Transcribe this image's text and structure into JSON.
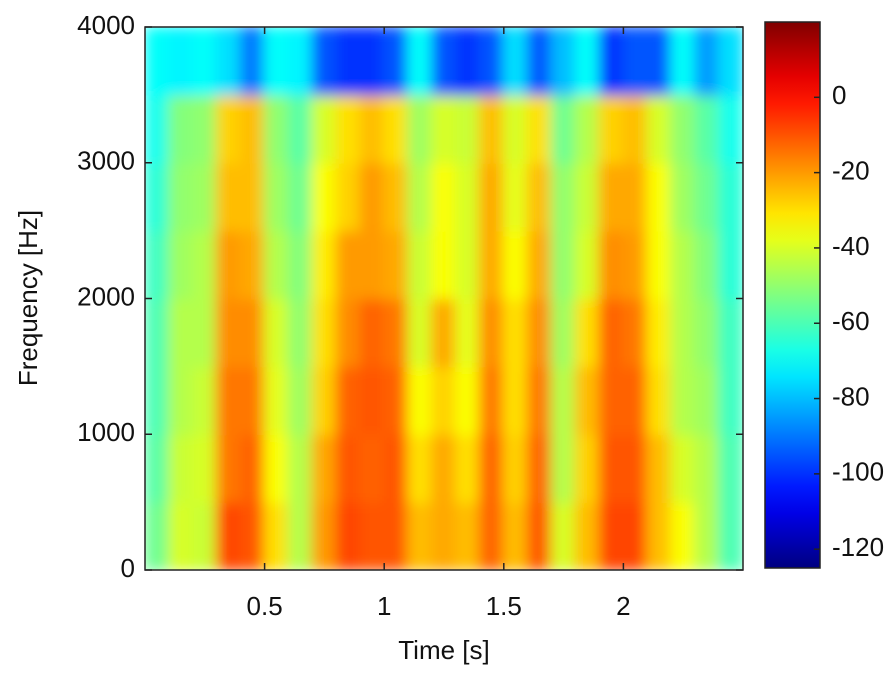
{
  "chart_data": {
    "type": "heatmap",
    "xlabel": "Time [s]",
    "ylabel": "Frequency [Hz]",
    "xlim": [
      0,
      2.5
    ],
    "xticks": [
      0.5,
      1,
      1.5,
      2
    ],
    "ylim": [
      0,
      4000
    ],
    "yticks": [
      0,
      1000,
      2000,
      3000,
      4000
    ],
    "colormap": "jet",
    "clim": [
      -125,
      20
    ],
    "cticks": [
      -120,
      -100,
      -80,
      -60,
      -40,
      -20,
      0
    ],
    "x": [
      0.05,
      0.15,
      0.25,
      0.35,
      0.45,
      0.55,
      0.65,
      0.75,
      0.85,
      0.95,
      1.05,
      1.15,
      1.25,
      1.35,
      1.45,
      1.55,
      1.65,
      1.75,
      1.85,
      1.95,
      2.05,
      2.15,
      2.25,
      2.35,
      2.45
    ],
    "y": [
      250,
      750,
      1250,
      1750,
      2250,
      2750,
      3250,
      3750
    ],
    "z": [
      [
        -55,
        -40,
        -42,
        -8,
        -10,
        -30,
        -45,
        -20,
        -8,
        -10,
        -10,
        -25,
        -22,
        -25,
        -12,
        -25,
        -10,
        -40,
        -25,
        -8,
        -8,
        -25,
        -35,
        -45,
        -60
      ],
      [
        -58,
        -42,
        -40,
        -15,
        -12,
        -35,
        -45,
        -22,
        -10,
        -12,
        -10,
        -30,
        -22,
        -30,
        -12,
        -28,
        -12,
        -45,
        -28,
        -10,
        -10,
        -25,
        -40,
        -45,
        -60
      ],
      [
        -60,
        -45,
        -42,
        -15,
        -15,
        -38,
        -48,
        -28,
        -12,
        -10,
        -12,
        -35,
        -28,
        -35,
        -15,
        -30,
        -15,
        -45,
        -25,
        -12,
        -12,
        -30,
        -45,
        -48,
        -62
      ],
      [
        -60,
        -45,
        -45,
        -18,
        -18,
        -40,
        -50,
        -30,
        -18,
        -12,
        -15,
        -40,
        -22,
        -38,
        -18,
        -30,
        -18,
        -48,
        -30,
        -12,
        -15,
        -32,
        -45,
        -50,
        -62
      ],
      [
        -62,
        -48,
        -45,
        -20,
        -22,
        -45,
        -52,
        -32,
        -20,
        -20,
        -22,
        -42,
        -35,
        -40,
        -22,
        -35,
        -22,
        -50,
        -40,
        -18,
        -20,
        -35,
        -45,
        -52,
        -65
      ],
      [
        -65,
        -50,
        -48,
        -25,
        -25,
        -48,
        -55,
        -35,
        -28,
        -20,
        -25,
        -45,
        -35,
        -40,
        -22,
        -38,
        -25,
        -50,
        -42,
        -22,
        -22,
        -35,
        -48,
        -55,
        -65
      ],
      [
        -68,
        -52,
        -50,
        -28,
        -25,
        -50,
        -58,
        -40,
        -30,
        -25,
        -30,
        -48,
        -40,
        -42,
        -25,
        -40,
        -30,
        -55,
        -45,
        -28,
        -25,
        -40,
        -50,
        -58,
        -68
      ],
      [
        -70,
        -72,
        -70,
        -75,
        -90,
        -70,
        -72,
        -95,
        -100,
        -100,
        -95,
        -70,
        -95,
        -100,
        -95,
        -75,
        -95,
        -80,
        -70,
        -100,
        -95,
        -95,
        -70,
        -85,
        -75
      ]
    ]
  }
}
